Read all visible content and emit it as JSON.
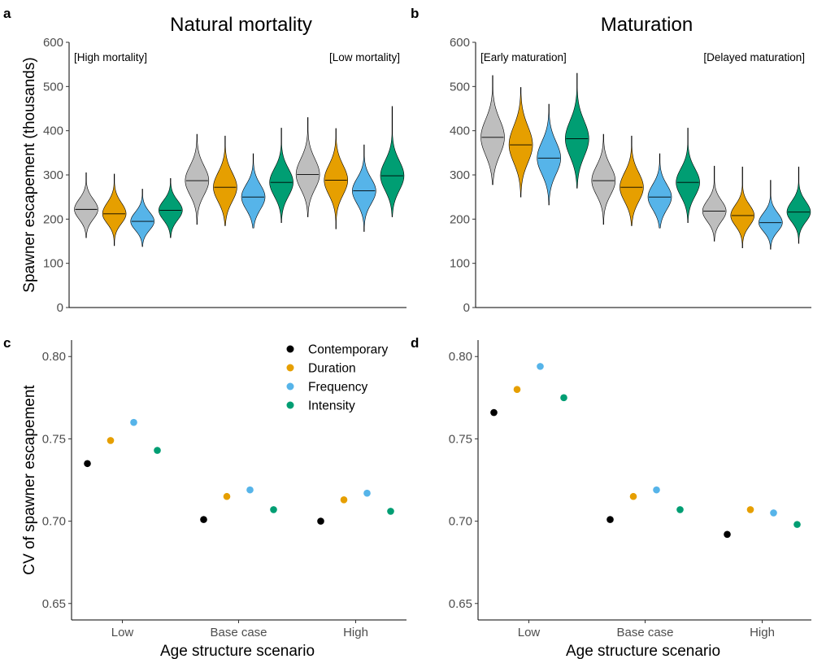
{
  "colors": {
    "Contemporary": "#000000",
    "Duration": "#E69F00",
    "Frequency": "#56B4E9",
    "Intensity": "#009E73",
    "violin_base": "#BEBEBE"
  },
  "legend": {
    "placement": "top-right of panel c",
    "entries": [
      "Contemporary",
      "Duration",
      "Frequency",
      "Intensity"
    ]
  },
  "chart_data": [
    {
      "panel": "a",
      "type": "violin",
      "title": "Natural mortality",
      "xlabel": "",
      "ylabel": "Spawner escapement (thousands)",
      "ylim": [
        0,
        600
      ],
      "yticks": [
        0,
        100,
        200,
        300,
        400,
        500,
        600
      ],
      "annotations": [
        "[High mortality]",
        "[Low mortality]"
      ],
      "groups": [
        {
          "violins": [
            {
              "series": "Contemporary",
              "median": 222,
              "q_low": 200,
              "q_high": 245,
              "min": 158,
              "max": 305
            },
            {
              "series": "Duration",
              "median": 212,
              "q_low": 190,
              "q_high": 237,
              "min": 140,
              "max": 302
            },
            {
              "series": "Frequency",
              "median": 195,
              "q_low": 175,
              "q_high": 216,
              "min": 138,
              "max": 268
            },
            {
              "series": "Intensity",
              "median": 220,
              "q_low": 198,
              "q_high": 242,
              "min": 158,
              "max": 292
            }
          ]
        },
        {
          "violins": [
            {
              "series": "Contemporary",
              "median": 287,
              "q_low": 255,
              "q_high": 320,
              "min": 188,
              "max": 392
            },
            {
              "series": "Duration",
              "median": 272,
              "q_low": 240,
              "q_high": 305,
              "min": 185,
              "max": 388
            },
            {
              "series": "Frequency",
              "median": 250,
              "q_low": 222,
              "q_high": 278,
              "min": 180,
              "max": 348
            },
            {
              "series": "Intensity",
              "median": 283,
              "q_low": 252,
              "q_high": 314,
              "min": 192,
              "max": 406
            }
          ]
        },
        {
          "violins": [
            {
              "series": "Contemporary",
              "median": 301,
              "q_low": 268,
              "q_high": 336,
              "min": 205,
              "max": 430
            },
            {
              "series": "Duration",
              "median": 288,
              "q_low": 255,
              "q_high": 322,
              "min": 178,
              "max": 405
            },
            {
              "series": "Frequency",
              "median": 264,
              "q_low": 235,
              "q_high": 292,
              "min": 172,
              "max": 368
            },
            {
              "series": "Intensity",
              "median": 298,
              "q_low": 265,
              "q_high": 332,
              "min": 205,
              "max": 455
            }
          ]
        }
      ]
    },
    {
      "panel": "b",
      "type": "violin",
      "title": "Maturation",
      "xlabel": "",
      "ylabel": "",
      "ylim": [
        0,
        600
      ],
      "yticks": [
        0,
        100,
        200,
        300,
        400,
        500,
        600
      ],
      "annotations": [
        "[Early maturation]",
        "[Delayed maturation]"
      ],
      "groups": [
        {
          "violins": [
            {
              "series": "Contemporary",
              "median": 385,
              "q_low": 345,
              "q_high": 425,
              "min": 278,
              "max": 525
            },
            {
              "series": "Duration",
              "median": 368,
              "q_low": 328,
              "q_high": 410,
              "min": 250,
              "max": 498
            },
            {
              "series": "Frequency",
              "median": 338,
              "q_low": 302,
              "q_high": 375,
              "min": 232,
              "max": 460
            },
            {
              "series": "Intensity",
              "median": 382,
              "q_low": 342,
              "q_high": 422,
              "min": 270,
              "max": 530
            }
          ]
        },
        {
          "violins": [
            {
              "series": "Contemporary",
              "median": 287,
              "q_low": 255,
              "q_high": 320,
              "min": 188,
              "max": 392
            },
            {
              "series": "Duration",
              "median": 272,
              "q_low": 240,
              "q_high": 305,
              "min": 185,
              "max": 388
            },
            {
              "series": "Frequency",
              "median": 250,
              "q_low": 222,
              "q_high": 278,
              "min": 180,
              "max": 348
            },
            {
              "series": "Intensity",
              "median": 283,
              "q_low": 252,
              "q_high": 314,
              "min": 192,
              "max": 406
            }
          ]
        },
        {
          "violins": [
            {
              "series": "Contemporary",
              "median": 218,
              "q_low": 195,
              "q_high": 242,
              "min": 150,
              "max": 320
            },
            {
              "series": "Duration",
              "median": 208,
              "q_low": 185,
              "q_high": 232,
              "min": 135,
              "max": 318
            },
            {
              "series": "Frequency",
              "median": 192,
              "q_low": 172,
              "q_high": 214,
              "min": 132,
              "max": 288
            },
            {
              "series": "Intensity",
              "median": 216,
              "q_low": 194,
              "q_high": 240,
              "min": 145,
              "max": 318
            }
          ]
        }
      ]
    },
    {
      "panel": "c",
      "type": "scatter",
      "title": "",
      "xlabel": "Age structure scenario",
      "ylabel": "CV of spawner escapement",
      "categories": [
        "Low",
        "Base case",
        "High"
      ],
      "ylim": [
        0.64,
        0.81
      ],
      "yticks": [
        0.65,
        0.7,
        0.75,
        0.8
      ],
      "series": [
        {
          "name": "Contemporary",
          "values": [
            0.735,
            0.701,
            0.7
          ]
        },
        {
          "name": "Duration",
          "values": [
            0.749,
            0.715,
            0.713
          ]
        },
        {
          "name": "Frequency",
          "values": [
            0.76,
            0.719,
            0.717
          ]
        },
        {
          "name": "Intensity",
          "values": [
            0.743,
            0.707,
            0.706
          ]
        }
      ]
    },
    {
      "panel": "d",
      "type": "scatter",
      "title": "",
      "xlabel": "Age structure scenario",
      "ylabel": "",
      "categories": [
        "Low",
        "Base case",
        "High"
      ],
      "ylim": [
        0.64,
        0.81
      ],
      "yticks": [
        0.65,
        0.7,
        0.75,
        0.8
      ],
      "series": [
        {
          "name": "Contemporary",
          "values": [
            0.766,
            0.701,
            0.692
          ]
        },
        {
          "name": "Duration",
          "values": [
            0.78,
            0.715,
            0.707
          ]
        },
        {
          "name": "Frequency",
          "values": [
            0.794,
            0.719,
            0.705
          ]
        },
        {
          "name": "Intensity",
          "values": [
            0.775,
            0.707,
            0.698
          ]
        }
      ]
    }
  ]
}
